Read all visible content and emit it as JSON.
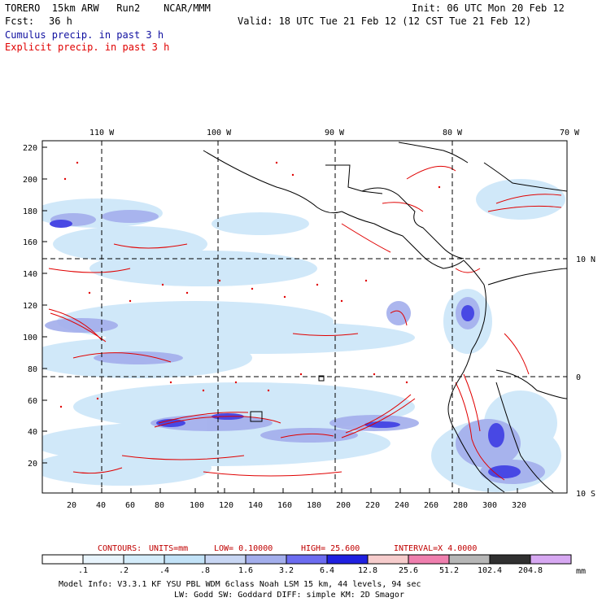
{
  "header": {
    "model_line": "TORERO  15km ARW   Run2    NCAR/MMM",
    "init_line": "Init: 06 UTC Mon 20 Feb 12",
    "fcst_label": "Fcst:",
    "fcst_value": "36 h",
    "valid_line": "Valid: 18 UTC Tue 21 Feb 12 (12 CST Tue 21 Feb 12)",
    "cumulus_label": "Cumulus precip. in past 3 h",
    "explicit_label": "Explicit precip. in past 3 h"
  },
  "colors": {
    "cumulus": "#1010a0",
    "explicit": "#e00000",
    "frame": "#000000"
  },
  "map": {
    "top_longitudes": [
      "110 W",
      "100 W",
      "90 W",
      "80 W",
      "70 W"
    ],
    "right_latitudes": [
      "10 N",
      "0",
      "10 S"
    ],
    "y_grid_labels": [
      "220",
      "200",
      "180",
      "160",
      "140",
      "120",
      "100",
      "80",
      "60",
      "40",
      "20"
    ],
    "x_grid_labels": [
      "20",
      "40",
      "60",
      "80",
      "100",
      "120",
      "140",
      "160",
      "180",
      "200",
      "220",
      "240",
      "260",
      "280",
      "300",
      "320"
    ]
  },
  "contour_info": {
    "contours_label": "CONTOURS:",
    "units": "UNITS=mm",
    "low": "LOW= 0.10000",
    "high": "HIGH=  25.600",
    "interval": "INTERVAL=X  4.0000"
  },
  "colorbar": {
    "labels": [
      ".1",
      ".2",
      ".4",
      ".8",
      "1.6",
      "3.2",
      "6.4",
      "12.8",
      "25.6",
      "51.2",
      "102.4",
      "204.8"
    ],
    "unit": "mm",
    "colors": [
      "#ffffff",
      "#e8f4fc",
      "#d4ecfa",
      "#c2e2f7",
      "#c8d6f3",
      "#a3aeec",
      "#6c6cf0",
      "#2020e0",
      "#f6cccc",
      "#ef7fae",
      "#b6b6b6",
      "#303030",
      "#d7a8f2"
    ]
  },
  "footer": {
    "line1": "Model Info: V3.3.1    KF     YSU PBL   WDM 6class  Noah LSM  15 km,    44 levels,    94 sec",
    "line2": "LW: Godd SW: Goddard DIFF: simple KM: 2D Smagor"
  }
}
